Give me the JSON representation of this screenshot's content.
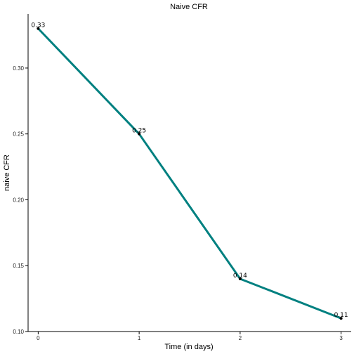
{
  "chart_data": {
    "type": "line",
    "title": "Naive CFR",
    "xlabel": "Time (in days)",
    "ylabel": "naive CFR",
    "x": [
      0,
      1,
      2,
      3
    ],
    "y": [
      0.33,
      0.25,
      0.14,
      0.11
    ],
    "point_labels": [
      "0.33",
      "0.25",
      "0.14",
      "0.11"
    ],
    "xlim": [
      -0.1,
      3.1
    ],
    "ylim": [
      0.1,
      0.341
    ],
    "x_ticks": [
      0,
      1,
      2,
      3
    ],
    "x_tick_labels": [
      "0",
      "1",
      "2",
      "3"
    ],
    "y_ticks": [
      0.1,
      0.15,
      0.2,
      0.25,
      0.3
    ],
    "y_tick_labels": [
      "0.10",
      "0.15",
      "0.20",
      "0.25",
      "0.30"
    ],
    "grid": false,
    "legend": "none",
    "line_color": "#008080",
    "point_color": "#000000"
  }
}
